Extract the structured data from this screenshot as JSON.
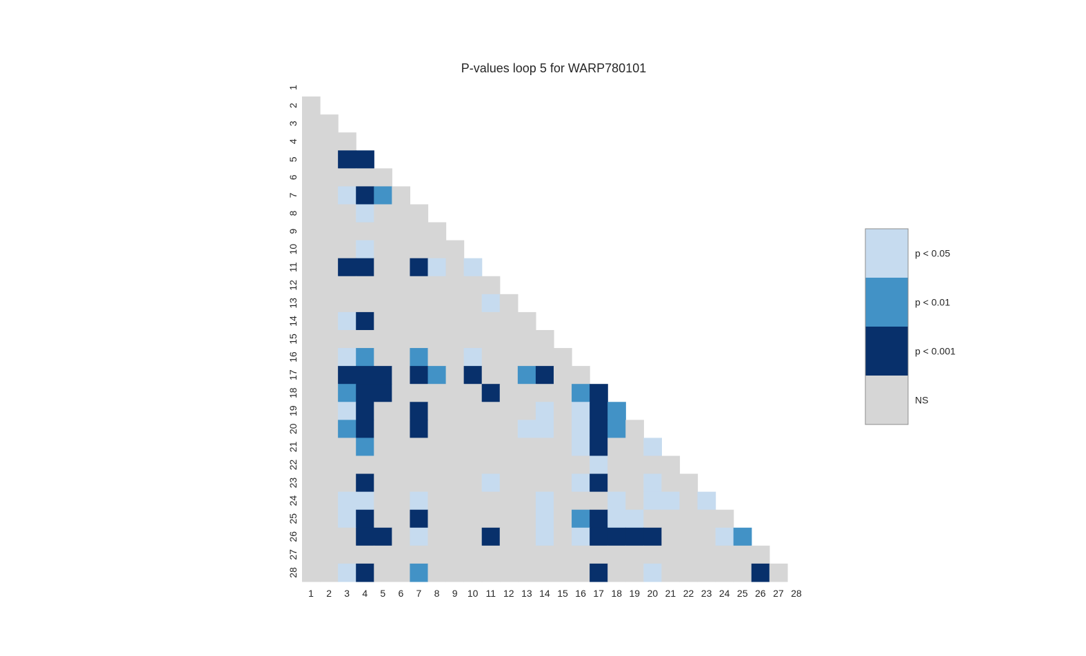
{
  "chart_data": {
    "type": "heatmap",
    "title": "P-values loop 5 for WARP780101",
    "xlabel": "",
    "ylabel": "",
    "x_categories": [
      "1",
      "2",
      "3",
      "4",
      "5",
      "6",
      "7",
      "8",
      "9",
      "10",
      "11",
      "12",
      "13",
      "14",
      "15",
      "16",
      "17",
      "18",
      "19",
      "20",
      "21",
      "22",
      "23",
      "24",
      "25",
      "26",
      "27",
      "28"
    ],
    "y_categories": [
      "1",
      "2",
      "3",
      "4",
      "5",
      "6",
      "7",
      "8",
      "9",
      "10",
      "11",
      "12",
      "13",
      "14",
      "15",
      "16",
      "17",
      "18",
      "19",
      "20",
      "21",
      "22",
      "23",
      "24",
      "25",
      "26",
      "27",
      "28"
    ],
    "mask": "lower-triangle (row > column)",
    "levels": [
      {
        "code": 0,
        "label": "NS",
        "color": "#d6d6d6"
      },
      {
        "code": 1,
        "label": "p < 0.05",
        "color": "#c6dbef"
      },
      {
        "code": 2,
        "label": "p < 0.01",
        "color": "#4292c6"
      },
      {
        "code": 3,
        "label": "p < 0.001",
        "color": "#08306b"
      }
    ],
    "legend_order": [
      "p < 0.05",
      "p < 0.01",
      "p < 0.001",
      "NS"
    ],
    "legend_position": "right",
    "grid": false,
    "significant_cells": [
      {
        "row": 5,
        "col": 3,
        "level": 3
      },
      {
        "row": 5,
        "col": 4,
        "level": 3
      },
      {
        "row": 7,
        "col": 3,
        "level": 1
      },
      {
        "row": 7,
        "col": 4,
        "level": 3
      },
      {
        "row": 7,
        "col": 5,
        "level": 2
      },
      {
        "row": 8,
        "col": 4,
        "level": 1
      },
      {
        "row": 10,
        "col": 4,
        "level": 1
      },
      {
        "row": 11,
        "col": 3,
        "level": 3
      },
      {
        "row": 11,
        "col": 4,
        "level": 3
      },
      {
        "row": 11,
        "col": 7,
        "level": 3
      },
      {
        "row": 11,
        "col": 8,
        "level": 1
      },
      {
        "row": 11,
        "col": 10,
        "level": 1
      },
      {
        "row": 13,
        "col": 11,
        "level": 1
      },
      {
        "row": 14,
        "col": 3,
        "level": 1
      },
      {
        "row": 14,
        "col": 4,
        "level": 3
      },
      {
        "row": 16,
        "col": 3,
        "level": 1
      },
      {
        "row": 16,
        "col": 4,
        "level": 2
      },
      {
        "row": 16,
        "col": 7,
        "level": 2
      },
      {
        "row": 16,
        "col": 10,
        "level": 1
      },
      {
        "row": 17,
        "col": 3,
        "level": 3
      },
      {
        "row": 17,
        "col": 4,
        "level": 3
      },
      {
        "row": 17,
        "col": 5,
        "level": 3
      },
      {
        "row": 17,
        "col": 7,
        "level": 3
      },
      {
        "row": 17,
        "col": 8,
        "level": 2
      },
      {
        "row": 17,
        "col": 10,
        "level": 3
      },
      {
        "row": 17,
        "col": 13,
        "level": 2
      },
      {
        "row": 17,
        "col": 14,
        "level": 3
      },
      {
        "row": 18,
        "col": 3,
        "level": 2
      },
      {
        "row": 18,
        "col": 4,
        "level": 3
      },
      {
        "row": 18,
        "col": 5,
        "level": 3
      },
      {
        "row": 18,
        "col": 11,
        "level": 3
      },
      {
        "row": 18,
        "col": 16,
        "level": 2
      },
      {
        "row": 18,
        "col": 17,
        "level": 3
      },
      {
        "row": 19,
        "col": 3,
        "level": 1
      },
      {
        "row": 19,
        "col": 4,
        "level": 3
      },
      {
        "row": 19,
        "col": 7,
        "level": 3
      },
      {
        "row": 19,
        "col": 14,
        "level": 1
      },
      {
        "row": 19,
        "col": 16,
        "level": 1
      },
      {
        "row": 19,
        "col": 17,
        "level": 3
      },
      {
        "row": 19,
        "col": 18,
        "level": 2
      },
      {
        "row": 20,
        "col": 3,
        "level": 2
      },
      {
        "row": 20,
        "col": 4,
        "level": 3
      },
      {
        "row": 20,
        "col": 7,
        "level": 3
      },
      {
        "row": 20,
        "col": 13,
        "level": 1
      },
      {
        "row": 20,
        "col": 14,
        "level": 1
      },
      {
        "row": 20,
        "col": 16,
        "level": 1
      },
      {
        "row": 20,
        "col": 17,
        "level": 3
      },
      {
        "row": 20,
        "col": 18,
        "level": 2
      },
      {
        "row": 21,
        "col": 4,
        "level": 2
      },
      {
        "row": 21,
        "col": 16,
        "level": 1
      },
      {
        "row": 21,
        "col": 17,
        "level": 3
      },
      {
        "row": 21,
        "col": 20,
        "level": 1
      },
      {
        "row": 22,
        "col": 17,
        "level": 1
      },
      {
        "row": 23,
        "col": 4,
        "level": 3
      },
      {
        "row": 23,
        "col": 11,
        "level": 1
      },
      {
        "row": 23,
        "col": 16,
        "level": 1
      },
      {
        "row": 23,
        "col": 17,
        "level": 3
      },
      {
        "row": 23,
        "col": 20,
        "level": 1
      },
      {
        "row": 24,
        "col": 3,
        "level": 1
      },
      {
        "row": 24,
        "col": 4,
        "level": 1
      },
      {
        "row": 24,
        "col": 7,
        "level": 1
      },
      {
        "row": 24,
        "col": 14,
        "level": 1
      },
      {
        "row": 24,
        "col": 18,
        "level": 1
      },
      {
        "row": 24,
        "col": 20,
        "level": 1
      },
      {
        "row": 24,
        "col": 21,
        "level": 1
      },
      {
        "row": 24,
        "col": 23,
        "level": 1
      },
      {
        "row": 25,
        "col": 3,
        "level": 1
      },
      {
        "row": 25,
        "col": 4,
        "level": 3
      },
      {
        "row": 25,
        "col": 7,
        "level": 3
      },
      {
        "row": 25,
        "col": 14,
        "level": 1
      },
      {
        "row": 25,
        "col": 16,
        "level": 2
      },
      {
        "row": 25,
        "col": 17,
        "level": 3
      },
      {
        "row": 25,
        "col": 18,
        "level": 1
      },
      {
        "row": 25,
        "col": 19,
        "level": 1
      },
      {
        "row": 26,
        "col": 4,
        "level": 3
      },
      {
        "row": 26,
        "col": 5,
        "level": 3
      },
      {
        "row": 26,
        "col": 7,
        "level": 1
      },
      {
        "row": 26,
        "col": 11,
        "level": 3
      },
      {
        "row": 26,
        "col": 14,
        "level": 1
      },
      {
        "row": 26,
        "col": 16,
        "level": 1
      },
      {
        "row": 26,
        "col": 17,
        "level": 3
      },
      {
        "row": 26,
        "col": 18,
        "level": 3
      },
      {
        "row": 26,
        "col": 19,
        "level": 3
      },
      {
        "row": 26,
        "col": 20,
        "level": 3
      },
      {
        "row": 26,
        "col": 24,
        "level": 1
      },
      {
        "row": 26,
        "col": 25,
        "level": 2
      },
      {
        "row": 28,
        "col": 3,
        "level": 1
      },
      {
        "row": 28,
        "col": 4,
        "level": 3
      },
      {
        "row": 28,
        "col": 7,
        "level": 2
      },
      {
        "row": 28,
        "col": 17,
        "level": 3
      },
      {
        "row": 28,
        "col": 20,
        "level": 1
      },
      {
        "row": 28,
        "col": 26,
        "level": 3
      }
    ],
    "default_level": 0
  }
}
